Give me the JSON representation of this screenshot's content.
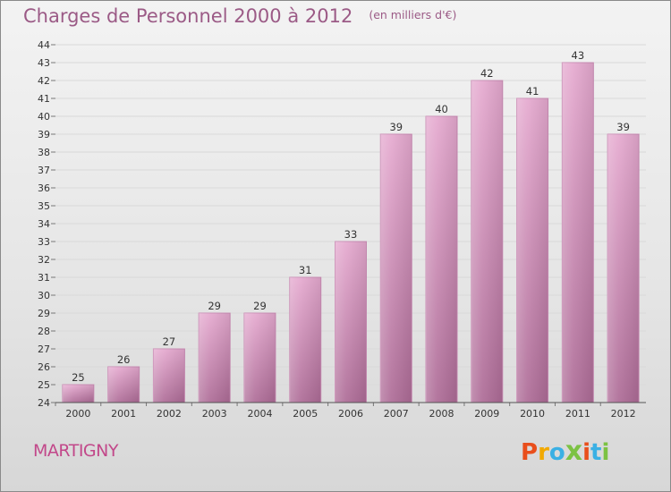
{
  "chart_data": {
    "type": "bar",
    "title": "Charges de Personnel 2000 à 2012",
    "subtitle": "(en milliers d'€)",
    "categories": [
      "2000",
      "2001",
      "2002",
      "2003",
      "2004",
      "2005",
      "2006",
      "2007",
      "2008",
      "2009",
      "2010",
      "2011",
      "2012"
    ],
    "values": [
      25,
      26,
      27,
      29,
      29,
      31,
      33,
      39,
      40,
      42,
      41,
      43,
      39
    ],
    "ylim": [
      24,
      44
    ],
    "ytick_step": 1,
    "xlabel": "",
    "ylabel": "",
    "grid": true,
    "colors": {
      "bar_top": "#e5a9cf",
      "bar_bottom": "#ad6b96",
      "bar_edge": "#c98cb4",
      "title": "#9b5a86",
      "city": "#c2488a"
    }
  },
  "location": "MARTIGNY",
  "brand": {
    "letters": [
      "P",
      "r",
      "o",
      "x",
      "i",
      "t",
      "i"
    ],
    "colors": [
      "#e94e1b",
      "#f2a900",
      "#3bb0e4",
      "#7cc243",
      "#e94e1b",
      "#3bb0e4",
      "#7cc243"
    ]
  }
}
